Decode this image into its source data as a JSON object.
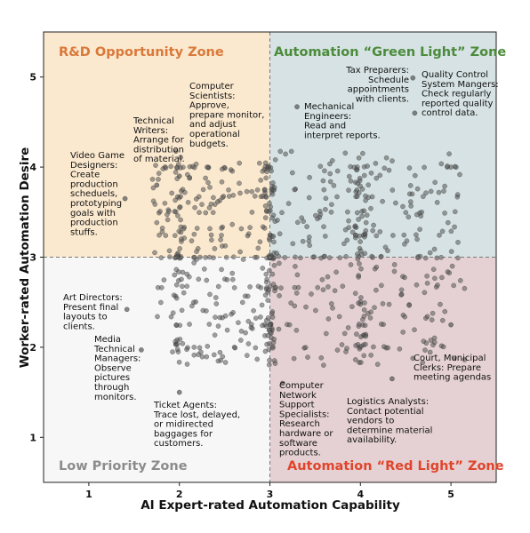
{
  "chart_data": {
    "type": "scatter",
    "title": "",
    "xlabel": "AI Expert-rated Automation Capability",
    "ylabel": "Worker-rated Automation Desire",
    "xlim": [
      0.5,
      5.5
    ],
    "ylim": [
      0.5,
      5.5
    ],
    "xticks": [
      "1",
      "2",
      "3",
      "4",
      "5"
    ],
    "yticks": [
      "1",
      "2",
      "3",
      "4",
      "5"
    ],
    "threshold": {
      "x": 3,
      "y": 3
    },
    "zones": [
      {
        "name": "R&D Opportunity Zone",
        "quadrant": "top-left",
        "fill": "#fbe9cf",
        "title_color": "#d9793a"
      },
      {
        "name": "Automation “Green Light” Zone",
        "quadrant": "top-right",
        "fill": "#d6e2e3",
        "title_color": "#4b8b3b"
      },
      {
        "name": "Low Priority Zone",
        "quadrant": "bottom-left",
        "fill": "#f7f7f7",
        "title_color": "#8c8c8c"
      },
      {
        "name": "Automation “Red Light” Zone",
        "quadrant": "bottom-right",
        "fill": "#e5d1d3",
        "title_color": "#e0452c"
      }
    ],
    "annotations": [
      {
        "lines": [
          "Tax Preparers:",
          "Schedule",
          "appointments",
          "with clients."
        ],
        "align": "end"
      },
      {
        "lines": [
          "Quality Control",
          "System Mangers:",
          "Check regularly",
          "reported quality",
          "control data."
        ],
        "align": "start"
      },
      {
        "lines": [
          "Computer",
          "Scientists:",
          "Approve,",
          "prepare monitor,",
          "and adjust",
          "operational",
          "budgets."
        ],
        "align": "start"
      },
      {
        "lines": [
          "Technical",
          "Writers:",
          "Arrange for",
          "distribution",
          "of material."
        ],
        "align": "start"
      },
      {
        "lines": [
          "Mechanical",
          "Engineers:",
          "Read and",
          "interpret reports."
        ],
        "align": "start"
      },
      {
        "lines": [
          "Video Game",
          "Designers:",
          "Create",
          "production",
          "scheduels,",
          "prototyping",
          "goals with",
          "production",
          "stuffs."
        ],
        "align": "start"
      },
      {
        "lines": [
          "Art Directors:",
          "Present final",
          "layouts to",
          "clients."
        ],
        "align": "start"
      },
      {
        "lines": [
          "Media",
          "Technical",
          "Managers:",
          "Observe",
          "pictures",
          "through",
          "monitors."
        ],
        "align": "start"
      },
      {
        "lines": [
          "Court, Municipal",
          "Clerks: Prepare",
          "meeting agendas"
        ],
        "align": "start"
      },
      {
        "lines": [
          "Computer",
          "Network",
          "Support",
          "Specialists:",
          "Research",
          "hardware or",
          "software",
          "products."
        ],
        "align": "start"
      },
      {
        "lines": [
          "Logistics Analysts:",
          "Contact potential",
          "vendors to",
          "determine material",
          "availability."
        ],
        "align": "start"
      },
      {
        "lines": [
          "Ticket Agents:",
          "Trace lost, delayed,",
          "or midirected",
          "baggages for",
          "customers."
        ],
        "align": "start"
      }
    ],
    "highlighted_points": [
      [
        4.58,
        4.99
      ],
      [
        4.6,
        4.6
      ],
      [
        2.0,
        3.9
      ],
      [
        1.75,
        3.8
      ],
      [
        3.3,
        4.67
      ],
      [
        1.4,
        3.65
      ],
      [
        1.42,
        2.42
      ],
      [
        1.58,
        1.97
      ],
      [
        5.0,
        2.25
      ],
      [
        3.14,
        1.6
      ],
      [
        4.35,
        1.65
      ],
      [
        2.0,
        1.5
      ]
    ],
    "cloud_dot_count": 720,
    "point_color": "#555555"
  }
}
